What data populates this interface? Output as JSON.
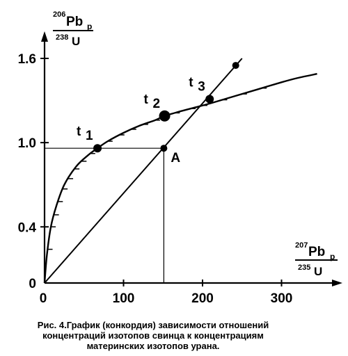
{
  "chart_data": {
    "type": "line",
    "title": "",
    "y_axis": {
      "label_top": "206Pb",
      "label_top_sup": "206",
      "label_top_main": "Pb",
      "label_top_sub": "p",
      "label_bottom_sup": "238",
      "label_bottom_main": "U",
      "ticks": [
        "0",
        "0.4",
        "1.0",
        "1.6"
      ],
      "range": [
        0,
        1.8
      ]
    },
    "x_axis": {
      "label_top_sup": "207",
      "label_top_main": "Pb",
      "label_top_sub": "p",
      "label_bottom_sup": "235",
      "label_bottom_main": "U",
      "ticks": [
        "0",
        "100",
        "200",
        "300"
      ],
      "range": [
        0,
        355
      ]
    },
    "series": [
      {
        "kind": "concordia",
        "x": [
          0,
          3,
          8,
          15,
          25,
          40,
          55,
          67,
          80,
          100,
          120,
          140,
          152,
          170,
          190,
          210,
          240,
          270,
          300,
          320,
          345
        ],
        "y": [
          0,
          0.2,
          0.4,
          0.55,
          0.7,
          0.83,
          0.91,
          0.96,
          1.01,
          1.07,
          1.12,
          1.16,
          1.19,
          1.22,
          1.25,
          1.28,
          1.33,
          1.38,
          1.43,
          1.46,
          1.49
        ]
      },
      {
        "kind": "discordia",
        "x": [
          0,
          250
        ],
        "y": [
          0,
          1.6
        ]
      }
    ],
    "points": [
      {
        "label": "t",
        "sub": "1",
        "x": 67,
        "y": 0.96
      },
      {
        "label": "t",
        "sub": "2",
        "x": 152,
        "y": 1.19
      },
      {
        "label": "t",
        "sub": "3",
        "x": 209,
        "y": 1.31
      },
      {
        "label": "",
        "sub": "",
        "x": 242,
        "y": 1.55
      }
    ],
    "reference_point": {
      "label": "A",
      "x": 151,
      "y": 0.96
    }
  },
  "caption": {
    "line1": "Рис. 4.График (конкордия) зависимости отношений",
    "line2": "концентраций изотопов свинца к концентрациям",
    "line3": "материнских изотопов урана."
  }
}
